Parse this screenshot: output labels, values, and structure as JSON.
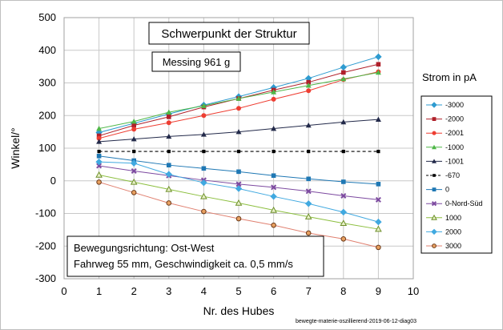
{
  "chart_data": {
    "type": "line",
    "title": "Schwerpunkt der Struktur",
    "subtitle": "Messing 961 g",
    "xlabel": "Nr. des Hubes",
    "ylabel": "Winkel/°",
    "xlim": [
      0,
      10
    ],
    "ylim": [
      -300,
      500
    ],
    "xticks": [
      "0",
      "1",
      "2",
      "3",
      "4",
      "5",
      "6",
      "7",
      "8",
      "9",
      "10"
    ],
    "yticks": [
      "500",
      "400",
      "300",
      "200",
      "100",
      "0",
      "-100",
      "-200",
      "-300"
    ],
    "grid": true,
    "legend_title": "Strom in pA",
    "legend_position": "right",
    "annotation_lines": [
      "Bewegungsrichtung: Ost-West",
      "Fahrweg 55 mm, Geschwindigkeit ca. 0,5 mm/s"
    ],
    "footer": "bewegte-materie-oszillierend-2019-06-12-diag03",
    "x": [
      1,
      2,
      3,
      4,
      5,
      6,
      7,
      8,
      9
    ],
    "series": [
      {
        "name": "-3000",
        "color": "#2e9bd0",
        "marker": "diamond",
        "values": [
          148,
          176,
          205,
          232,
          258,
          286,
          314,
          348,
          380
        ]
      },
      {
        "name": "-2000",
        "color": "#b0202a",
        "marker": "square",
        "values": [
          138,
          170,
          196,
          226,
          252,
          278,
          302,
          332,
          357
        ]
      },
      {
        "name": "-2001",
        "color": "#ee3e32",
        "marker": "circle",
        "values": [
          130,
          158,
          178,
          200,
          222,
          250,
          276,
          310,
          334
        ]
      },
      {
        "name": "-1000",
        "color": "#4fb748",
        "marker": "triangle",
        "values": [
          160,
          182,
          210,
          230,
          252,
          272,
          292,
          312,
          332
        ]
      },
      {
        "name": "-1001",
        "color": "#232a4a",
        "marker": "triangle",
        "values": [
          120,
          128,
          136,
          142,
          150,
          160,
          170,
          180,
          188
        ]
      },
      {
        "name": "-670",
        "color": "#000000",
        "marker": "square-small",
        "dashed": true,
        "values": [
          90,
          90,
          90,
          90,
          90,
          90,
          90,
          90,
          90
        ]
      },
      {
        "name": "0",
        "color": "#1f78b4",
        "marker": "square",
        "values": [
          76,
          62,
          48,
          38,
          28,
          16,
          6,
          -3,
          -10
        ]
      },
      {
        "name": "0-Nord-Süd",
        "color": "#7d4aa0",
        "marker": "x",
        "values": [
          46,
          30,
          16,
          2,
          -10,
          -20,
          -32,
          -46,
          -58
        ]
      },
      {
        "name": "1000",
        "color": "#8cbf3f",
        "marker": "triangle-open",
        "values": [
          18,
          -4,
          -26,
          -48,
          -68,
          -90,
          -110,
          -130,
          -148
        ]
      },
      {
        "name": "2000",
        "color": "#41a9e0",
        "marker": "diamond",
        "values": [
          58,
          54,
          20,
          -6,
          -24,
          -48,
          -70,
          -96,
          -126
        ]
      },
      {
        "name": "3000",
        "color": "#e08070",
        "marker": "circle-brown",
        "values": [
          -4,
          -36,
          -68,
          -94,
          -116,
          -136,
          -160,
          -178,
          -204
        ]
      }
    ]
  }
}
